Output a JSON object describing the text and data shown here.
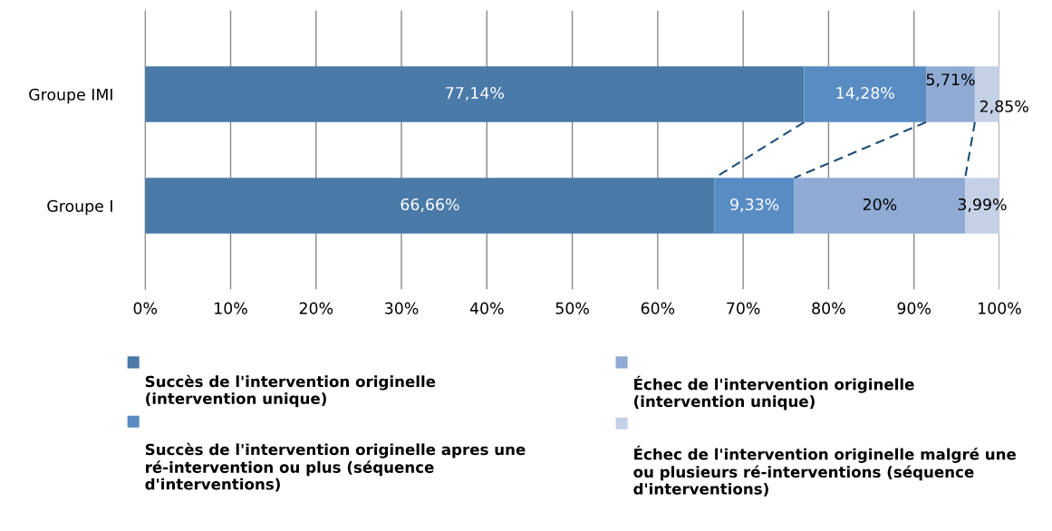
{
  "chart_data": {
    "type": "bar",
    "orientation": "horizontal",
    "stacked": true,
    "categories": [
      "Groupe IMI",
      "Groupe I"
    ],
    "series": [
      {
        "name": "Succès de l'intervention originelle\n(intervention unique)",
        "color": "#4a7aa8",
        "values": [
          77.14,
          66.66
        ],
        "value_labels": [
          "77,14%",
          "66,66%"
        ]
      },
      {
        "name": "Succès de l'intervention originelle apres une\nré-intervention ou plus (séquence\nd'interventions)",
        "color": "#5a8cc4",
        "values": [
          14.28,
          9.33
        ],
        "value_labels": [
          "14,28%",
          "9,33%"
        ]
      },
      {
        "name": "Échec de l'intervention originelle\n(intervention unique)",
        "color": "#8faad3",
        "values": [
          5.71,
          20
        ],
        "value_labels": [
          "5,71%",
          "20%"
        ]
      },
      {
        "name": "Échec de l'intervention originelle malgré une\nou plusieurs ré-interventions (séquence\nd'interventions)",
        "color": "#c4d0e5",
        "values": [
          2.85,
          3.99
        ],
        "value_labels": [
          "2,85%",
          "3,99%"
        ]
      }
    ],
    "xlim": [
      0,
      100
    ],
    "xticks": [
      {
        "value": 0,
        "label": "0%"
      },
      {
        "value": 10,
        "label": "10%"
      },
      {
        "value": 20,
        "label": "20%"
      },
      {
        "value": 30,
        "label": "30%"
      },
      {
        "value": 40,
        "label": "40%"
      },
      {
        "value": 50,
        "label": "50%"
      },
      {
        "value": 60,
        "label": "60%"
      },
      {
        "value": 70,
        "label": "70%"
      },
      {
        "value": 80,
        "label": "80%"
      },
      {
        "value": 90,
        "label": "90%"
      },
      {
        "value": 100,
        "label": "100%"
      }
    ],
    "grid": "x",
    "legend": "bottom"
  }
}
